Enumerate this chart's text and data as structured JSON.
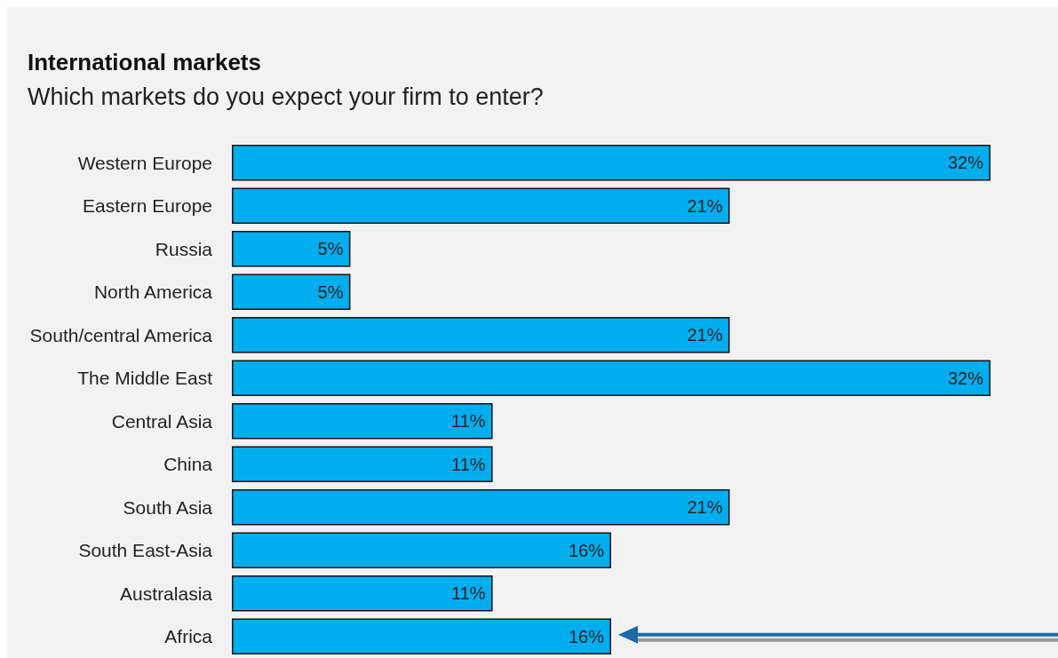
{
  "chart_data": {
    "type": "bar",
    "orientation": "horizontal",
    "title": "International markets",
    "subtitle": "Which markets do you expect your firm to enter?",
    "categories": [
      "Western Europe",
      "Eastern Europe",
      "Russia",
      "North America",
      "South/central America",
      "The Middle East",
      "Central Asia",
      "China",
      "South Asia",
      "South East-Asia",
      "Australasia",
      "Africa"
    ],
    "values": [
      32,
      21,
      5,
      5,
      21,
      32,
      11,
      11,
      21,
      16,
      11,
      16
    ],
    "value_labels": [
      "32%",
      "21%",
      "5%",
      "5%",
      "21%",
      "32%",
      "11%",
      "11%",
      "21%",
      "16%",
      "11%",
      "16%"
    ],
    "color": "#00aeef"
  }
}
